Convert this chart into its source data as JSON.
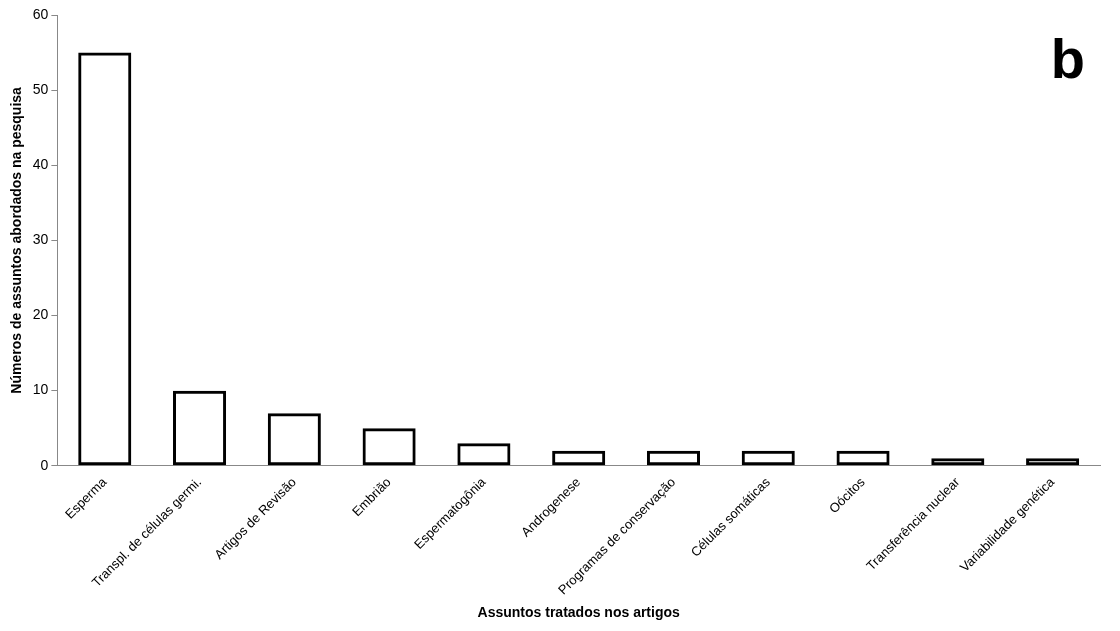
{
  "chart_data": {
    "type": "bar",
    "xlabel": "Assuntos tratados nos artigos",
    "ylabel": "Números de assuntos abordados na pesquisa",
    "categories": [
      "Esperma",
      "Transpl. de células germi.",
      "Artigos de Revisão",
      "Embrião",
      "Espermatogônia",
      "Androgenese",
      "Programas de conservação",
      "Células somáticas",
      "Oócitos",
      "Transferência nuclear",
      "Variabilidade genética"
    ],
    "values": [
      55,
      10,
      7,
      5,
      3,
      2,
      2,
      2,
      2,
      1,
      1
    ],
    "color": "#000000",
    "ylim": [
      0,
      60
    ],
    "yticks": [
      0,
      10,
      20,
      30,
      40,
      50,
      60
    ],
    "grid": false,
    "legend": false,
    "annotations": [
      "b"
    ]
  }
}
